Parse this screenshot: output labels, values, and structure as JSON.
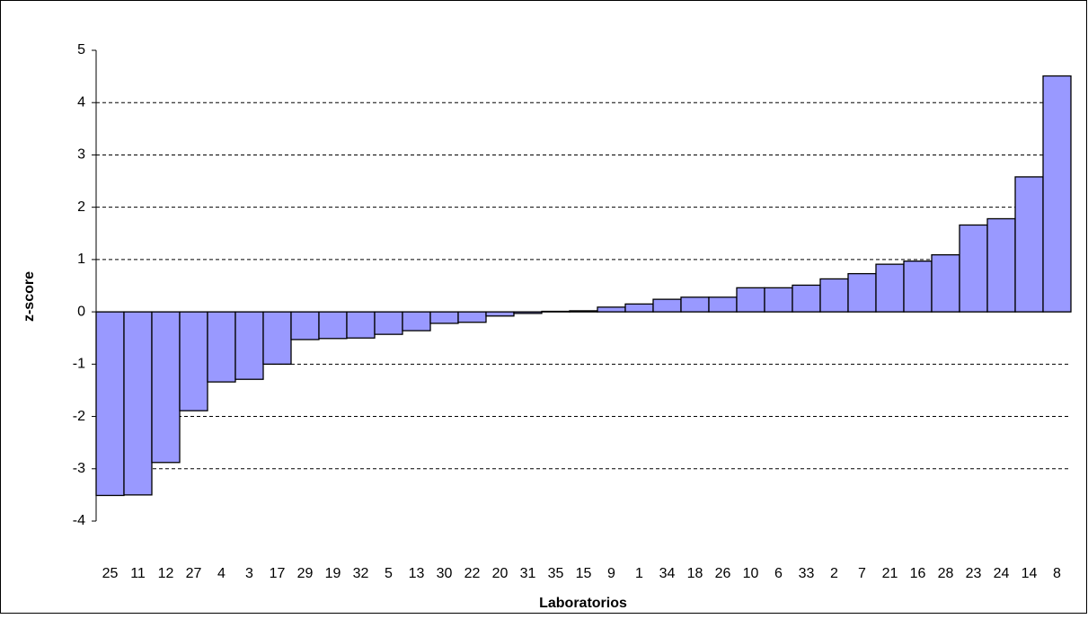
{
  "chart_data": {
    "type": "bar",
    "x_label": "Laboratorios",
    "y_label": "z-score",
    "categories": [
      "25",
      "11",
      "12",
      "27",
      "4",
      "3",
      "17",
      "29",
      "19",
      "32",
      "5",
      "13",
      "30",
      "22",
      "20",
      "31",
      "35",
      "15",
      "9",
      "1",
      "34",
      "18",
      "26",
      "10",
      "6",
      "33",
      "2",
      "7",
      "21",
      "16",
      "28",
      "23",
      "24",
      "14",
      "8"
    ],
    "values": [
      -3.51,
      -3.5,
      -2.88,
      -1.89,
      -1.34,
      -1.29,
      -1.0,
      -0.53,
      -0.51,
      -0.5,
      -0.43,
      -0.36,
      -0.22,
      -0.2,
      -0.08,
      -0.03,
      0.01,
      0.02,
      0.09,
      0.15,
      0.24,
      0.28,
      0.28,
      0.46,
      0.46,
      0.51,
      0.63,
      0.73,
      0.91,
      0.97,
      1.09,
      1.66,
      1.78,
      2.58,
      4.51
    ],
    "color": "#9999ff",
    "ylim": [
      -4,
      5
    ],
    "yticks": [
      -4,
      -3,
      -2,
      -1,
      0,
      1,
      2,
      3,
      4,
      5
    ],
    "grid": true
  }
}
